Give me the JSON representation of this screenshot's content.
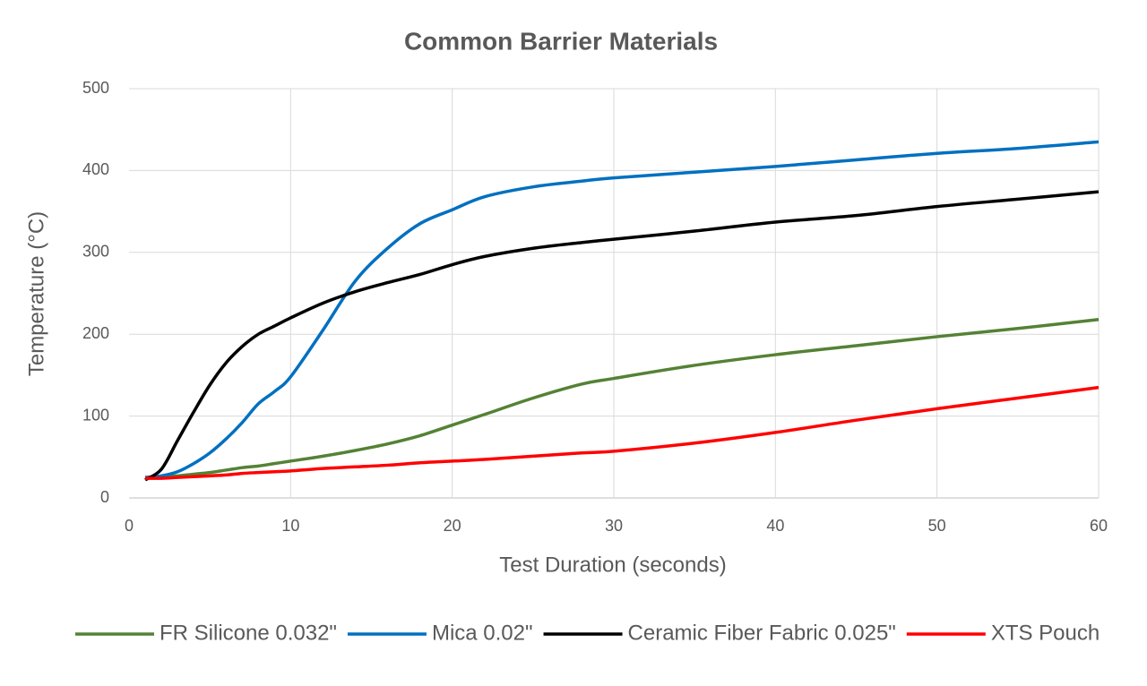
{
  "chart_data": {
    "type": "line",
    "title": "Common Barrier Materials",
    "x_label": "Test Duration (seconds)",
    "y_label": "Temperature (°C)",
    "x": [
      1,
      2,
      3,
      4,
      5,
      6,
      7,
      8,
      9,
      10,
      12,
      14,
      16,
      18,
      20,
      22,
      25,
      28,
      30,
      35,
      40,
      45,
      50,
      55,
      60
    ],
    "series": [
      {
        "name": "FR Silicone  0.032\"",
        "color": "#548235",
        "values": [
          25,
          26,
          27,
          29,
          31,
          34,
          37,
          39,
          42,
          45,
          51,
          58,
          66,
          76,
          89,
          102,
          122,
          139,
          146,
          162,
          175,
          186,
          197,
          207,
          218
        ]
      },
      {
        "name": "Mica  0.02\"",
        "color": "#0070c0",
        "values": [
          25,
          27,
          32,
          42,
          55,
          72,
          92,
          115,
          130,
          148,
          205,
          265,
          305,
          335,
          352,
          368,
          380,
          387,
          391,
          398,
          405,
          413,
          421,
          427,
          435
        ]
      },
      {
        "name": "Ceramic Fiber Fabric  0.025\"",
        "color": "#000000",
        "values": [
          22,
          35,
          70,
          105,
          138,
          165,
          185,
          200,
          210,
          220,
          238,
          252,
          263,
          273,
          285,
          295,
          305,
          312,
          316,
          326,
          337,
          345,
          356,
          365,
          374
        ]
      },
      {
        "name": "XTS Pouch",
        "color": "#ff0000",
        "values": [
          24,
          24,
          25,
          26,
          27,
          28,
          30,
          31,
          32,
          33,
          36,
          38,
          40,
          43,
          45,
          47,
          51,
          55,
          57,
          67,
          80,
          95,
          109,
          122,
          135
        ]
      }
    ],
    "xlim": [
      0,
      60
    ],
    "xticks": [
      0,
      10,
      20,
      30,
      40,
      50,
      60
    ],
    "ylim": [
      0,
      500
    ],
    "yticks": [
      0,
      100,
      200,
      300,
      400,
      500
    ],
    "grid": true,
    "legend": "bottom"
  }
}
